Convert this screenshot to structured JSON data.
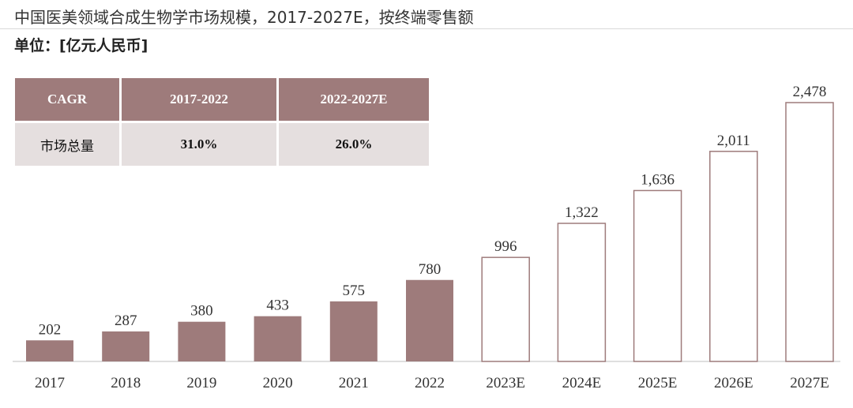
{
  "title": "中国医美领域合成生物学市场规模，2017-2027E，按终端零售额",
  "unit": "单位：[亿元人民币]",
  "cagr_table": {
    "headers": [
      "CAGR",
      "2017-2022",
      "2022-2027E"
    ],
    "row_label": "市场总量",
    "values": [
      "31.0%",
      "26.0%"
    ]
  },
  "colors": {
    "actual_fill": "#9e7b7b",
    "forecast_stroke": "#9e7b7b",
    "table_header": "#9e7b7b",
    "table_cell": "#e5dfdf"
  },
  "chart_data": {
    "type": "bar",
    "categories": [
      "2017",
      "2018",
      "2019",
      "2020",
      "2021",
      "2022",
      "2023E",
      "2024E",
      "2025E",
      "2026E",
      "2027E"
    ],
    "values": [
      202,
      287,
      380,
      433,
      575,
      780,
      996,
      1322,
      1636,
      2011,
      2478
    ],
    "value_labels": [
      "202",
      "287",
      "380",
      "433",
      "575",
      "780",
      "996",
      "1,322",
      "1,636",
      "2,011",
      "2,478"
    ],
    "forecast_from_index": 6,
    "ylim": [
      0,
      2478
    ],
    "grid": false
  }
}
